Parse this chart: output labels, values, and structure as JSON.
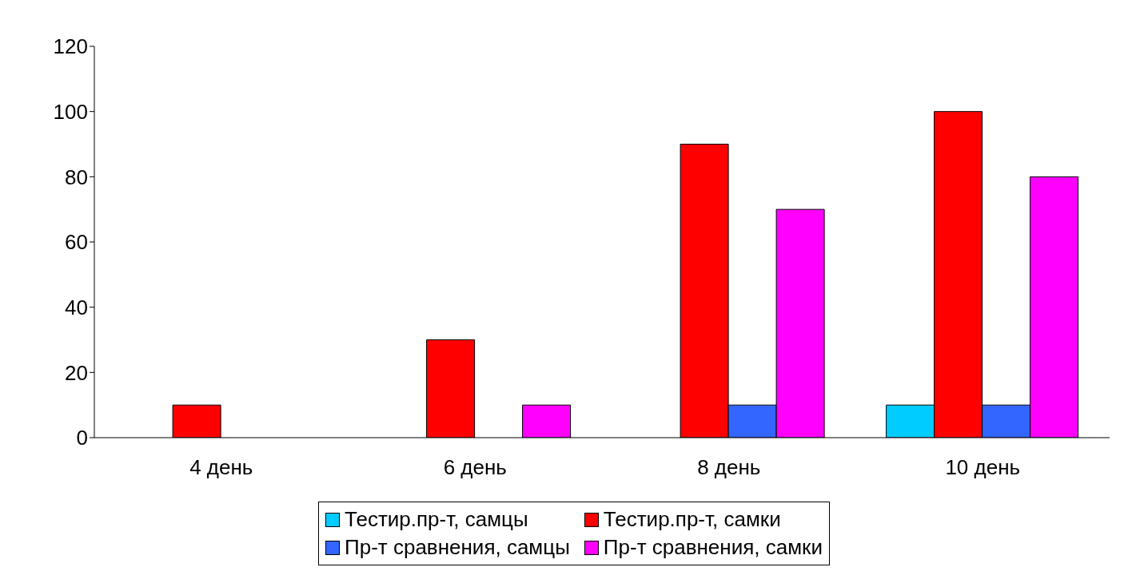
{
  "chart_data": {
    "type": "bar",
    "categories": [
      "4 день",
      "6 день",
      "8 день",
      "10 день"
    ],
    "series": [
      {
        "name": "Тестир.пр-т, самцы",
        "color": "#00ccff",
        "values": [
          0,
          0,
          0,
          10
        ]
      },
      {
        "name": "Тестир.пр-т, самки",
        "color": "#ff0000",
        "values": [
          10,
          30,
          90,
          100
        ]
      },
      {
        "name": "Пр-т сравнения, самцы",
        "color": "#3366ff",
        "values": [
          0,
          0,
          10,
          10
        ]
      },
      {
        "name": "Пр-т сравнения, самки",
        "color": "#ff00ff",
        "values": [
          0,
          10,
          70,
          80
        ]
      }
    ],
    "ylim": [
      0,
      120
    ],
    "yticks": [
      0,
      20,
      40,
      60,
      80,
      100,
      120
    ],
    "grid": false,
    "legend": "bottom"
  }
}
